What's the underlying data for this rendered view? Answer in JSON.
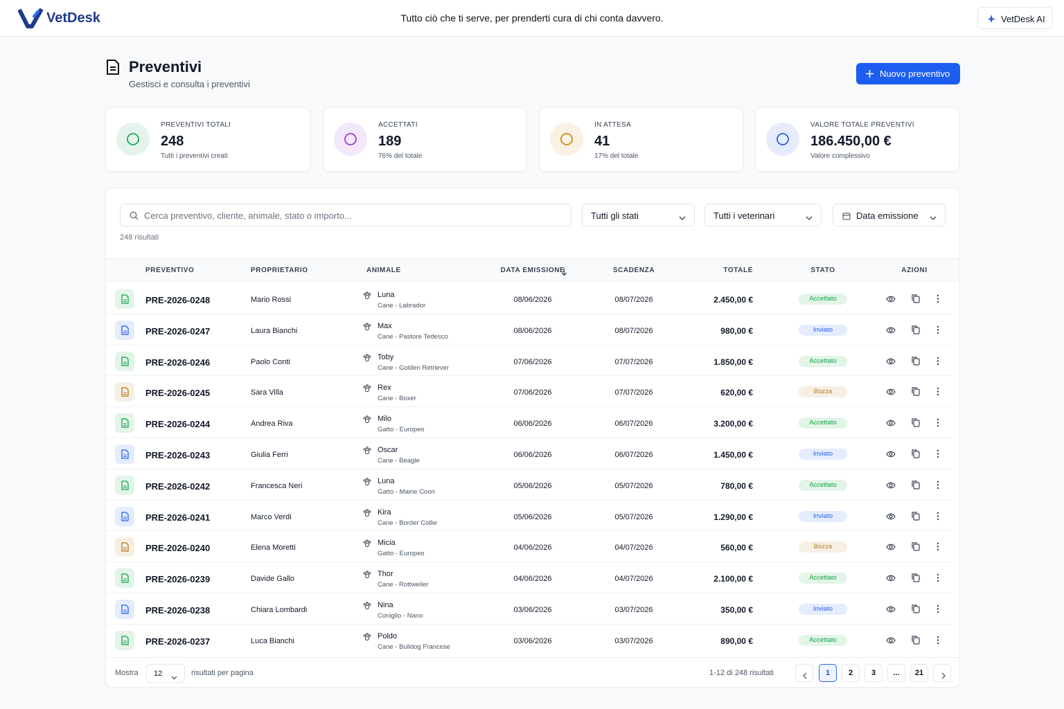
{
  "header": {
    "brand": "VetDesk",
    "tagline": "Tutto ciò che ti serve, per prenderti cura di chi conta davvero.",
    "ai_button": "VetDesk AI"
  },
  "page": {
    "title": "Preventivi",
    "subtitle": "Gestisci e consulta i preventivi",
    "new_button": "Nuovo preventivo"
  },
  "stats": [
    {
      "label": "PREVENTIVI TOTALI",
      "value": "248",
      "note": "Tutti i preventivi creati",
      "color": "#22a55b"
    },
    {
      "label": "ACCETTATI",
      "value": "189",
      "note": "76% del totale",
      "color": "#9b3fd1"
    },
    {
      "label": "IN ATTESA",
      "value": "41",
      "note": "17% del totale",
      "color": "#d18a14"
    },
    {
      "label": "VALORE TOTALE PREVENTIVI",
      "value": "186.450,00 €",
      "note": "Valore complessivo",
      "color": "#2f5fe0"
    }
  ],
  "filters": {
    "search": "Cerca preventivo, cliente, animale, stato o importo...",
    "selects": [
      "Tutti gli stati",
      "Tutti i veterinari",
      "Data emissione"
    ],
    "results": "248 risultati"
  },
  "table": {
    "columns": [
      "PREVENTIVO",
      "PROPRIETARIO",
      "ANIMALE",
      "DATA EMISSIONE",
      "SCADENZA",
      "TOTALE",
      "STATO",
      "AZIONI"
    ],
    "rows": [
      {
        "id": "PRE-2026-0248",
        "owner": "Mario Rossi",
        "pet": "Luna",
        "breed": "Cane - Labrador",
        "issued": "08/06/2026",
        "expires": "08/07/2026",
        "total": "2.450,00 €",
        "status": "Accettato",
        "color": "#16a34a"
      },
      {
        "id": "PRE-2026-0247",
        "owner": "Laura Bianchi",
        "pet": "Max",
        "breed": "Cane - Pastore Tedesco",
        "issued": "08/06/2026",
        "expires": "08/07/2026",
        "total": "980,00 €",
        "status": "Inviato",
        "color": "#2563eb"
      },
      {
        "id": "PRE-2026-0246",
        "owner": "Paolo Conti",
        "pet": "Toby",
        "breed": "Cane - Golden Retriever",
        "issued": "07/06/2026",
        "expires": "07/07/2026",
        "total": "1.850,00 €",
        "status": "Accettato",
        "color": "#16a34a"
      },
      {
        "id": "PRE-2026-0245",
        "owner": "Sara Villa",
        "pet": "Rex",
        "breed": "Cane - Boxer",
        "issued": "07/06/2026",
        "expires": "07/07/2026",
        "total": "620,00 €",
        "status": "Bozza",
        "color": "#b7791f"
      },
      {
        "id": "PRE-2026-0244",
        "owner": "Andrea Riva",
        "pet": "Milo",
        "breed": "Gatto - Europeo",
        "issued": "06/06/2026",
        "expires": "06/07/2026",
        "total": "3.200,00 €",
        "status": "Accettato",
        "color": "#16a34a"
      },
      {
        "id": "PRE-2026-0243",
        "owner": "Giulia Ferri",
        "pet": "Oscar",
        "breed": "Cane - Beagle",
        "issued": "06/06/2026",
        "expires": "06/07/2026",
        "total": "1.450,00 €",
        "status": "Inviato",
        "color": "#2563eb"
      },
      {
        "id": "PRE-2026-0242",
        "owner": "Francesca Neri",
        "pet": "Luna",
        "breed": "Gatto - Maine Coon",
        "issued": "05/06/2026",
        "expires": "05/07/2026",
        "total": "780,00 €",
        "status": "Accettato",
        "color": "#16a34a"
      },
      {
        "id": "PRE-2026-0241",
        "owner": "Marco Verdi",
        "pet": "Kira",
        "breed": "Cane - Border Collie",
        "issued": "05/06/2026",
        "expires": "05/07/2026",
        "total": "1.290,00 €",
        "status": "Inviato",
        "color": "#2563eb"
      },
      {
        "id": "PRE-2026-0240",
        "owner": "Elena Moretti",
        "pet": "Micia",
        "breed": "Gatto - Europeo",
        "issued": "04/06/2026",
        "expires": "04/07/2026",
        "total": "560,00 €",
        "status": "Bozza",
        "color": "#b7791f"
      },
      {
        "id": "PRE-2026-0239",
        "owner": "Davide Gallo",
        "pet": "Thor",
        "breed": "Cane - Rottweiler",
        "issued": "04/06/2026",
        "expires": "04/07/2026",
        "total": "2.100,00 €",
        "status": "Accettato",
        "color": "#16a34a"
      },
      {
        "id": "PRE-2026-0238",
        "owner": "Chiara Lombardi",
        "pet": "Nina",
        "breed": "Coniglio - Nano",
        "issued": "03/06/2026",
        "expires": "03/07/2026",
        "total": "350,00 €",
        "status": "Inviato",
        "color": "#2563eb"
      },
      {
        "id": "PRE-2026-0237",
        "owner": "Luca Bianchi",
        "pet": "Poldo",
        "breed": "Cane - Bulldog Francese",
        "issued": "03/06/2026",
        "expires": "03/07/2026",
        "total": "890,00 €",
        "status": "Accettato",
        "color": "#16a34a"
      }
    ]
  },
  "footer": {
    "show": "Mostra",
    "per_page": "12",
    "per_page_label": "risultati per pagina",
    "range": "1-12 di 248 risultati",
    "pages": [
      "1",
      "2",
      "3",
      "...",
      "21"
    ]
  }
}
